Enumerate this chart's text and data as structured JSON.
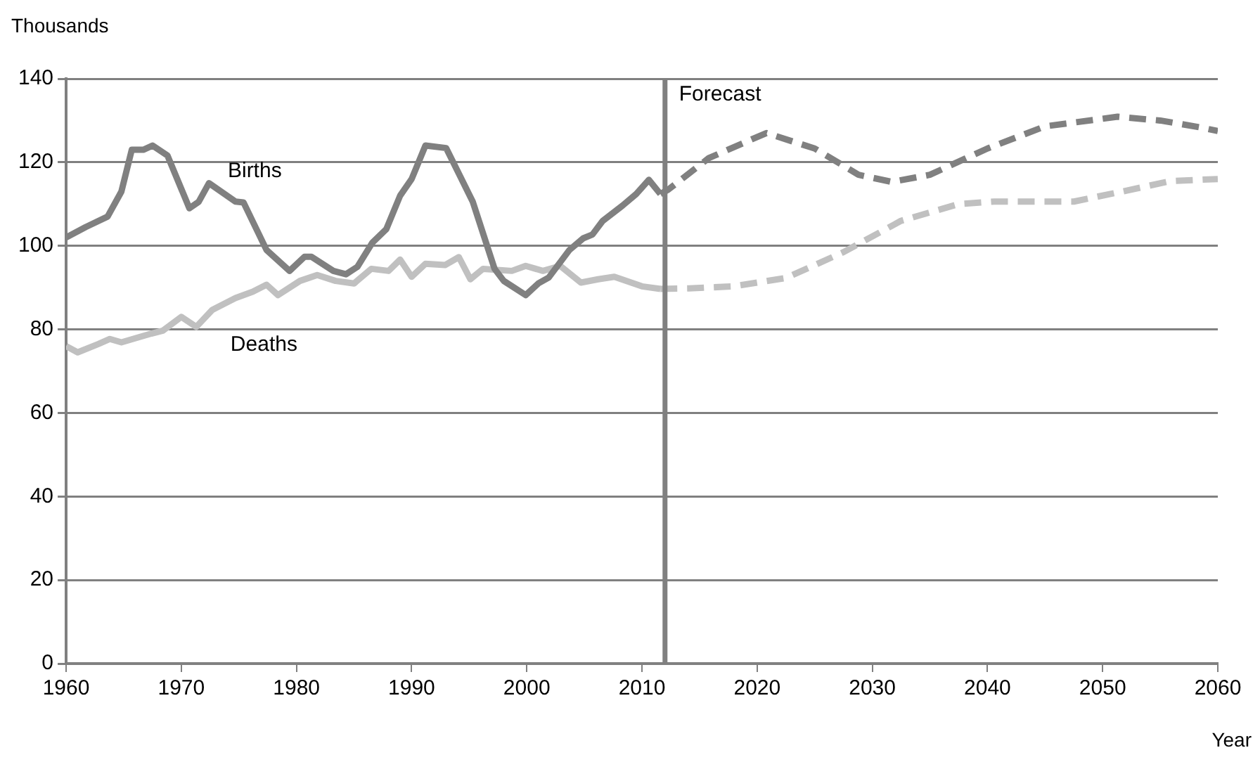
{
  "chart_data": {
    "type": "line",
    "ylabel": "Thousands",
    "xlabel": "Year",
    "xlim": [
      1960,
      2060
    ],
    "xticks": [
      1960,
      1970,
      1980,
      1990,
      2000,
      2010,
      2020,
      2030,
      2040,
      2050,
      2060
    ],
    "ylim": [
      0,
      140
    ],
    "yticks": [
      0,
      20,
      40,
      60,
      80,
      100,
      120,
      140
    ],
    "grid": "y",
    "legend": false,
    "marker": "none",
    "series": [
      {
        "name": "Births",
        "color": "#808080",
        "line_style": "solid",
        "x": [
          1960,
          1961.7,
          1963.6,
          1964.8,
          1965.7,
          1966.7,
          1967.5,
          1968.8,
          1970.7,
          1971.5,
          1972.4,
          1974.7,
          1975.4,
          1977.4,
          1979.4,
          1980.7,
          1981.3,
          1983.2,
          1984.3,
          1985.3,
          1986.6,
          1987.8,
          1989,
          1990,
          1991.2,
          1993,
          1995.3,
          1997.2,
          1998,
          1999.9,
          2001,
          2001.9,
          2003.7,
          2004.9,
          2005.7,
          2006.6,
          2008.3,
          2009.5,
          2010.6,
          2011.6
        ],
        "values": [
          102,
          104.5,
          107,
          113,
          123,
          123,
          124,
          121.6,
          109,
          110.5,
          115,
          110.6,
          110.4,
          99,
          94,
          97.4,
          97.4,
          94,
          93.2,
          95,
          100.8,
          104,
          112,
          116,
          124,
          123.4,
          110.6,
          94.5,
          91.6,
          88.2,
          91,
          92.4,
          99,
          101.8,
          102.7,
          106,
          109.6,
          112.4,
          115.8,
          112.4
        ]
      },
      {
        "name": "Deaths",
        "color": "#c0c0c0",
        "line_style": "solid",
        "x": [
          1960,
          1961,
          1962.8,
          1963.8,
          1964.8,
          1967.4,
          1968.4,
          1970,
          1971.3,
          1972.7,
          1974.7,
          1976.2,
          1977.4,
          1978.4,
          1980.3,
          1981.8,
          1983.4,
          1985,
          1986.5,
          1988,
          1989,
          1990,
          1991.2,
          1992.9,
          1994.1,
          1995.1,
          1996.2,
          1998.7,
          1999.9,
          2001.4,
          2002.9,
          2004.7,
          2006.2,
          2007.6,
          2010,
          2011.6
        ],
        "values": [
          76,
          74.5,
          76.5,
          77.7,
          76.9,
          79,
          79.7,
          83,
          80.6,
          84.7,
          87.5,
          89,
          90.7,
          88.2,
          91.6,
          93,
          91.6,
          91,
          94.5,
          94,
          96.7,
          92.6,
          95.7,
          95.4,
          97.3,
          92,
          94.5,
          94,
          95.2,
          94,
          95.2,
          91.2,
          92,
          92.6,
          90.3,
          89.7
        ]
      },
      {
        "color": "#808080",
        "line_style": "dashed",
        "x": [
          2011.6,
          2012.3,
          2015.8,
          2020.8,
          2025,
          2028.8,
          2031.7,
          2035,
          2040,
          2045,
          2051.3,
          2055,
          2058.6,
          2060
        ],
        "values": [
          112.4,
          113.5,
          121,
          127,
          123.3,
          117,
          115.3,
          117,
          123.3,
          128.6,
          130.9,
          130,
          128.3,
          127.5
        ]
      },
      {
        "color": "#c0c0c0",
        "line_style": "dashed",
        "x": [
          2011.6,
          2014.1,
          2017.9,
          2022.5,
          2027.5,
          2032.5,
          2037.5,
          2040.6,
          2047.5,
          2051.7,
          2055.9,
          2060
        ],
        "values": [
          89.7,
          89.8,
          90.3,
          92.3,
          98.5,
          106,
          110,
          110.6,
          110.6,
          113,
          115.5,
          116
        ]
      }
    ],
    "ref_lines": [
      {
        "axis": "x",
        "value": 2012,
        "label": "Forecast",
        "color": "#808080"
      }
    ]
  }
}
